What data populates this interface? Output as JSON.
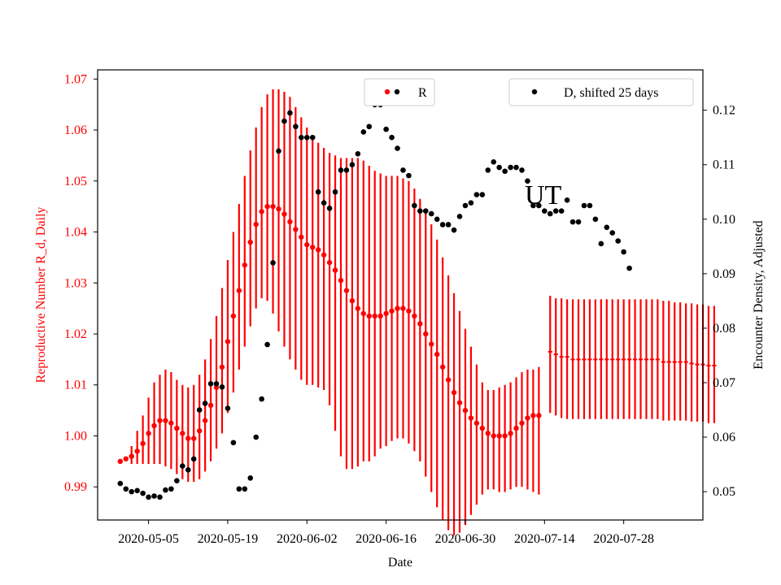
{
  "chart_data": {
    "type": "scatter",
    "xlabel": "Date",
    "ylabel_left": "Reproductive Number R_d, Daily",
    "ylabel_right": "Encounter Density, Adjusted",
    "annotation": "UT",
    "x_start_date": "2020-04-30",
    "xlim_dates": [
      "2020-04-26",
      "2020-08-11"
    ],
    "x_tick_labels": [
      "2020-05-05",
      "2020-05-19",
      "2020-06-02",
      "2020-06-16",
      "2020-06-30",
      "2020-07-14",
      "2020-07-28"
    ],
    "ylim_left": [
      0.9835,
      1.0718
    ],
    "yticks_left": [
      "0.99",
      "1.00",
      "1.01",
      "1.02",
      "1.03",
      "1.04",
      "1.05",
      "1.06",
      "1.07"
    ],
    "ylim_right": [
      0.0448,
      0.1274
    ],
    "yticks_right": [
      "0.05",
      "0.06",
      "0.07",
      "0.08",
      "0.09",
      "0.10",
      "0.11",
      "0.12"
    ],
    "colors": {
      "R": "#ff0000",
      "D": "#000000",
      "left_axis": "#ff0000",
      "right_axis": "#000000"
    },
    "legend_R": {
      "label": "R",
      "placement": "upper-center"
    },
    "legend_D": {
      "label": "D, shifted 25 days",
      "placement": "upper-right"
    },
    "series_R": {
      "name": "R",
      "values": [
        0.995,
        0.9955,
        0.996,
        0.997,
        0.9985,
        1.0005,
        1.002,
        1.003,
        1.003,
        1.0025,
        1.0015,
        1.0005,
        0.9995,
        0.9995,
        1.001,
        1.003,
        1.006,
        1.0095,
        1.0135,
        1.0185,
        1.0235,
        1.0285,
        1.0335,
        1.038,
        1.0415,
        1.044,
        1.045,
        1.045,
        1.0445,
        1.0435,
        1.042,
        1.0405,
        1.039,
        1.0375,
        1.037,
        1.0365,
        1.0355,
        1.034,
        1.0325,
        1.0305,
        1.0285,
        1.0265,
        1.025,
        1.024,
        1.0235,
        1.0235,
        1.0235,
        1.024,
        1.0245,
        1.025,
        1.025,
        1.0245,
        1.0235,
        1.022,
        1.02,
        1.018,
        1.016,
        1.0135,
        1.011,
        1.0085,
        1.0065,
        1.005,
        1.0035,
        1.0025,
        1.0015,
        1.0005,
        1.0,
        1.0,
        1.0,
        1.0005,
        1.0015,
        1.0025,
        1.0035,
        1.004,
        1.004
      ],
      "upper": [
        0.995,
        0.9955,
        0.998,
        1.001,
        1.004,
        1.0075,
        1.0105,
        1.012,
        1.013,
        1.0125,
        1.011,
        1.01,
        1.0095,
        1.01,
        1.012,
        1.015,
        1.019,
        1.0235,
        1.029,
        1.0345,
        1.04,
        1.0455,
        1.051,
        1.056,
        1.0605,
        1.0645,
        1.067,
        1.068,
        1.068,
        1.0675,
        1.0665,
        1.0645,
        1.0625,
        1.0605,
        1.059,
        1.0575,
        1.0565,
        1.0555,
        1.055,
        1.0545,
        1.0545,
        1.0545,
        1.0545,
        1.054,
        1.053,
        1.052,
        1.0515,
        1.051,
        1.051,
        1.051,
        1.0505,
        1.05,
        1.0485,
        1.0465,
        1.044,
        1.0415,
        1.0385,
        1.035,
        1.0315,
        1.028,
        1.0245,
        1.021,
        1.0175,
        1.014,
        1.0105,
        1.009,
        1.009,
        1.0095,
        1.01,
        1.0105,
        1.0115,
        1.0125,
        1.013,
        1.013,
        1.0135
      ],
      "lower": [
        0.995,
        0.9955,
        0.9945,
        0.9945,
        0.9945,
        0.9945,
        0.9945,
        0.9945,
        0.994,
        0.9935,
        0.9925,
        0.9915,
        0.991,
        0.991,
        0.9915,
        0.993,
        0.995,
        0.9975,
        1.0005,
        1.0045,
        1.0085,
        1.013,
        1.0175,
        1.0215,
        1.025,
        1.027,
        1.0265,
        1.024,
        1.0205,
        1.0175,
        1.015,
        1.013,
        1.011,
        1.01,
        1.01,
        1.0095,
        1.009,
        1.006,
        1.001,
        0.996,
        0.9935,
        0.9935,
        0.994,
        0.995,
        0.995,
        0.996,
        0.9975,
        0.998,
        0.999,
        0.9995,
        0.9995,
        0.9985,
        0.997,
        0.995,
        0.992,
        0.989,
        0.986,
        0.9835,
        0.9815,
        0.9805,
        0.981,
        0.9825,
        0.9845,
        0.9865,
        0.9885,
        0.9895,
        0.9895,
        0.989,
        0.989,
        0.9895,
        0.99,
        0.99,
        0.9895,
        0.989,
        0.9885
      ],
      "flat": {
        "values": [
          1.0165,
          1.016,
          1.0155,
          1.0155,
          1.015,
          1.015,
          1.015,
          1.015,
          1.015,
          1.015,
          1.015,
          1.015,
          1.015,
          1.015,
          1.015,
          1.015,
          1.015,
          1.015,
          1.015,
          1.015,
          1.0145,
          1.0145,
          1.0145,
          1.0145,
          1.0145,
          1.0142,
          1.014,
          1.014,
          1.0138,
          1.0138
        ],
        "upper": [
          1.0275,
          1.027,
          1.027,
          1.0268,
          1.0268,
          1.0268,
          1.0268,
          1.0268,
          1.0268,
          1.0268,
          1.0268,
          1.0268,
          1.0268,
          1.0268,
          1.0268,
          1.0268,
          1.0268,
          1.0268,
          1.0268,
          1.0268,
          1.0265,
          1.0265,
          1.0262,
          1.0262,
          1.026,
          1.026,
          1.0258,
          1.0258,
          1.0255,
          1.0255
        ],
        "lower": [
          1.0045,
          1.004,
          1.0035,
          1.0033,
          1.0033,
          1.0033,
          1.0033,
          1.0033,
          1.0033,
          1.0033,
          1.0033,
          1.0033,
          1.0033,
          1.0033,
          1.0033,
          1.0033,
          1.0033,
          1.0033,
          1.0033,
          1.0033,
          1.003,
          1.003,
          1.003,
          1.003,
          1.003,
          1.0028,
          1.0028,
          1.0028,
          1.0025,
          1.0025
        ]
      }
    },
    "series_D": {
      "name": "D, shifted 25 days",
      "values": [
        0.0515,
        0.0505,
        0.05,
        0.0502,
        0.0497,
        0.049,
        0.0492,
        0.049,
        0.0503,
        0.0505,
        0.052,
        0.0547,
        0.054,
        0.056,
        0.065,
        0.0662,
        0.0698,
        0.0698,
        0.0692,
        0.0653,
        0.059,
        0.0505,
        0.0505,
        0.0525,
        0.06,
        0.067,
        0.077,
        0.092,
        0.1125,
        0.118,
        0.1195,
        0.117,
        0.115,
        0.115,
        0.115,
        0.105,
        0.103,
        0.102,
        0.105,
        0.109,
        0.109,
        0.11,
        0.112,
        0.116,
        0.117,
        0.121,
        0.121,
        0.1165,
        0.115,
        0.113,
        0.109,
        0.108,
        0.1025,
        0.1015,
        0.1015,
        0.101,
        0.1,
        0.099,
        0.099,
        0.098,
        0.1005,
        0.1025,
        0.103,
        0.1045,
        0.1045,
        0.109,
        0.1105,
        0.1095,
        0.1088,
        0.1095,
        0.1095,
        0.109,
        0.107,
        0.1025,
        0.1025,
        0.1015,
        0.101,
        0.1015,
        0.1015,
        0.1035,
        0.0995,
        0.0995,
        0.1025,
        0.1025,
        0.1,
        0.0955,
        0.0985,
        0.0975,
        0.096,
        0.094,
        0.091
      ]
    }
  }
}
